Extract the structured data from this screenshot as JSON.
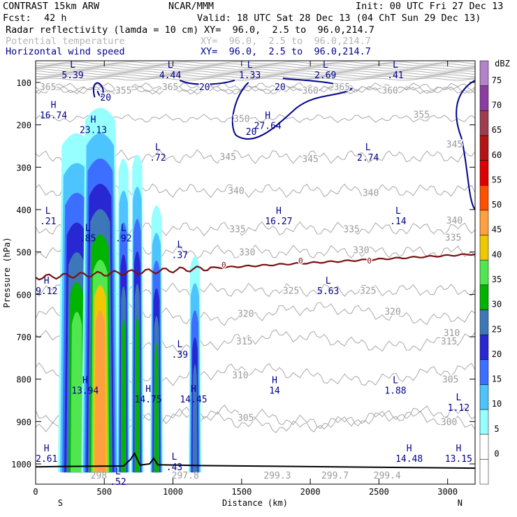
{
  "header": {
    "model": "CONTRAST 15km ARW",
    "institution": "NCAR/MMM",
    "init": "Init: 00 UTC Fri 27 Dec 13",
    "fcst_label": "Fcst:",
    "fcst_value": "42 h",
    "valid": "Valid: 18 UTC Sat 28 Dec 13 (04 ChT Sun 29 Dec 13)",
    "field1_name": "Radar reflectivity (lamda = 10 cm)",
    "field2_name": "Potential temperature",
    "field3_name": "Horizontal wind speed",
    "xy_text": "XY=  96.0,  2.5 to  96.0,214.7"
  },
  "colors": {
    "wind": "#00008b",
    "theta": "#a8a8a8",
    "freezing": "#7a1010",
    "terrain": "#000000"
  },
  "chart_data": {
    "type": "heatmap",
    "title": "Radar reflectivity (lamda = 10 cm) cross-section",
    "xlabel": "Distance (km)",
    "ylabel": "Pressure (hPa)",
    "xlim": [
      0,
      3200
    ],
    "ylim": [
      1050,
      50
    ],
    "x_ticks": [
      0,
      500,
      1000,
      1500,
      2000,
      2500,
      3000
    ],
    "y_ticks": [
      100,
      200,
      300,
      400,
      500,
      600,
      700,
      800,
      900,
      1000
    ],
    "x_end_labels": {
      "left": "S",
      "right": "N"
    },
    "colorbar": {
      "units": "dBZ",
      "levels": [
        0,
        5,
        10,
        15,
        20,
        25,
        30,
        35,
        40,
        45,
        50,
        55,
        60,
        65,
        70,
        75
      ],
      "colors": [
        "#ffffff",
        "#96ffff",
        "#4ec4ff",
        "#3c6eff",
        "#2828d2",
        "#3c78b8",
        "#00b400",
        "#50e650",
        "#f0c800",
        "#ffa040",
        "#ff5000",
        "#dc0000",
        "#b41414",
        "#a03c50",
        "#8c3ca0",
        "#b482c8"
      ]
    },
    "reflectivity_cells": [
      {
        "x_km": 300,
        "p_top": 210,
        "peak_dbz": 35
      },
      {
        "x_km": 470,
        "p_top": 150,
        "peak_dbz": 45
      },
      {
        "x_km": 640,
        "p_top": 270,
        "peak_dbz": 30
      },
      {
        "x_km": 740,
        "p_top": 260,
        "peak_dbz": 30
      },
      {
        "x_km": 880,
        "p_top": 380,
        "peak_dbz": 30
      },
      {
        "x_km": 1160,
        "p_top": 500,
        "peak_dbz": 25
      }
    ],
    "theta_contours": [
      {
        "value": 365,
        "label_pos": [
          [
            90,
            110
          ],
          [
            980,
            110
          ],
          [
            2230,
            110
          ]
        ]
      },
      {
        "value": 360,
        "label_pos": [
          [
            2000,
            118
          ],
          [
            2580,
            118
          ]
        ]
      },
      {
        "value": 355,
        "label_pos": [
          [
            640,
            118
          ],
          [
            2810,
            175
          ]
        ]
      },
      {
        "value": 350,
        "label_pos": [
          [
            1500,
            185
          ]
        ]
      },
      {
        "value": 345,
        "label_pos": [
          [
            1400,
            275
          ],
          [
            2000,
            280
          ],
          [
            3050,
            245
          ]
        ]
      },
      {
        "value": 340,
        "label_pos": [
          [
            1460,
            355
          ],
          [
            2440,
            360
          ],
          [
            3050,
            425
          ]
        ]
      },
      {
        "value": 335,
        "label_pos": [
          [
            1470,
            445
          ],
          [
            2300,
            445
          ],
          [
            3040,
            465
          ]
        ]
      },
      {
        "value": 330,
        "label_pos": [
          [
            1540,
            500
          ],
          [
            2370,
            495
          ]
        ]
      },
      {
        "value": 325,
        "label_pos": [
          [
            1860,
            590
          ],
          [
            2420,
            590
          ]
        ]
      },
      {
        "value": 320,
        "label_pos": [
          [
            1530,
            645
          ],
          [
            2600,
            640
          ]
        ]
      },
      {
        "value": 315,
        "label_pos": [
          [
            1520,
            710
          ],
          [
            3010,
            710
          ]
        ]
      },
      {
        "value": 310,
        "label_pos": [
          [
            1490,
            790
          ],
          [
            3030,
            690
          ]
        ]
      },
      {
        "value": 305,
        "label_pos": [
          [
            1530,
            890
          ],
          [
            3020,
            800
          ]
        ]
      },
      {
        "value": 300,
        "label_pos": [
          [
            3010,
            900
          ]
        ]
      }
    ],
    "wind_contours": [
      {
        "value": 20,
        "label_pos": [
          [
            510,
            135
          ],
          [
            1230,
            110
          ],
          [
            1780,
            110
          ],
          [
            1570,
            215
          ]
        ]
      }
    ],
    "freezing_level": {
      "value": 0,
      "label_pos": [
        [
          1370,
          530
        ],
        [
          1930,
          520
        ],
        [
          2430,
          520
        ]
      ]
    },
    "terrain_label": "0",
    "hl_labels": [
      {
        "t": "L",
        "v": "5.39",
        "x": 270,
        "p": 65
      },
      {
        "t": "L",
        "v": "4.44",
        "x": 980,
        "p": 65
      },
      {
        "t": "L",
        "v": "1.33",
        "x": 1560,
        "p": 65
      },
      {
        "t": "L",
        "v": "2.69",
        "x": 2110,
        "p": 65
      },
      {
        "t": "L",
        "v": ".41",
        "x": 2620,
        "p": 65
      },
      {
        "t": "H",
        "v": "16.74",
        "x": 130,
        "p": 160
      },
      {
        "t": "H",
        "v": "23.13",
        "x": 420,
        "p": 195
      },
      {
        "t": "H",
        "v": "27.64",
        "x": 1690,
        "p": 185
      },
      {
        "t": "L",
        "v": ".72",
        "x": 890,
        "p": 260
      },
      {
        "t": "L",
        "v": "2.74",
        "x": 2420,
        "p": 260
      },
      {
        "t": "L",
        "v": ".21",
        "x": 90,
        "p": 410
      },
      {
        "t": "H",
        "v": "16.27",
        "x": 1770,
        "p": 410
      },
      {
        "t": "L",
        "v": ".14",
        "x": 2640,
        "p": 410
      },
      {
        "t": "L",
        "v": ".85",
        "x": 380,
        "p": 450
      },
      {
        "t": "L",
        "v": ".92",
        "x": 640,
        "p": 450
      },
      {
        "t": "L",
        "v": ".37",
        "x": 1050,
        "p": 490
      },
      {
        "t": "H",
        "v": "9.12",
        "x": 80,
        "p": 575
      },
      {
        "t": "L",
        "v": "5.63",
        "x": 2130,
        "p": 575
      },
      {
        "t": "L",
        "v": ".39",
        "x": 1050,
        "p": 725
      },
      {
        "t": "H",
        "v": "13.94",
        "x": 360,
        "p": 810
      },
      {
        "t": "H",
        "v": "14",
        "x": 1740,
        "p": 810
      },
      {
        "t": "L",
        "v": "1.88",
        "x": 2620,
        "p": 810
      },
      {
        "t": "H",
        "v": "14.75",
        "x": 820,
        "p": 830
      },
      {
        "t": "H",
        "v": "14.45",
        "x": 1150,
        "p": 830
      },
      {
        "t": "L",
        "v": "1.12",
        "x": 3080,
        "p": 850
      },
      {
        "t": "H",
        "v": "2.61",
        "x": 80,
        "p": 970
      },
      {
        "t": "H",
        "v": "14.48",
        "x": 2720,
        "p": 970
      },
      {
        "t": "H",
        "v": "13.15",
        "x": 3080,
        "p": 970
      },
      {
        "t": "L",
        "v": ".43",
        "x": 1010,
        "p": 990
      },
      {
        "t": "L",
        "v": ".52",
        "x": 600,
        "p": 1025
      }
    ],
    "surface_theta_labels": [
      {
        "v": "298",
        "x": 460,
        "p": 1035
      },
      {
        "v": "297.8",
        "x": 1090,
        "p": 1035
      },
      {
        "v": "299.3",
        "x": 1760,
        "p": 1035
      },
      {
        "v": "299.7",
        "x": 2180,
        "p": 1035
      },
      {
        "v": "299.4",
        "x": 2560,
        "p": 1035
      }
    ]
  }
}
